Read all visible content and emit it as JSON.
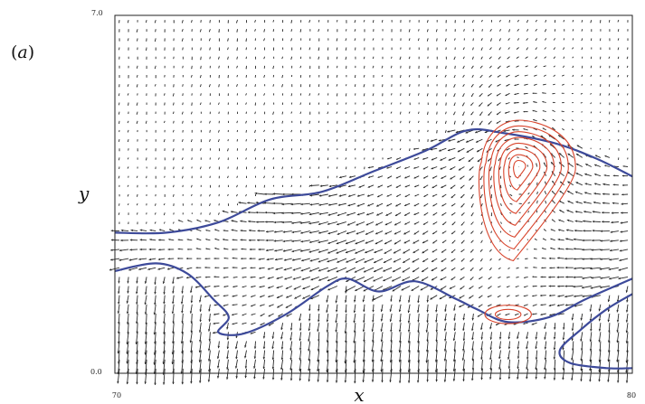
{
  "chart_data": {
    "type": "vector-field",
    "panel_label": "(a)",
    "panel_letter": "a",
    "xlabel": "x",
    "ylabel": "y",
    "xlim": [
      70,
      80
    ],
    "ylim": [
      0.0,
      7.0
    ],
    "x_ticks": [
      "70",
      "80"
    ],
    "y_ticks": [
      "0.0",
      "7.0"
    ],
    "grid": false,
    "colors": {
      "arrows": "#2a2a2a",
      "boundary": "#3d4a9a",
      "contours": "#d8442c",
      "frame": "#222222"
    },
    "boundary_curves": [
      {
        "name": "upper",
        "points": [
          [
            70,
            2.75
          ],
          [
            71,
            2.75
          ],
          [
            72,
            2.95
          ],
          [
            73,
            3.4
          ],
          [
            74,
            3.55
          ],
          [
            75,
            3.95
          ],
          [
            76,
            4.35
          ],
          [
            76.8,
            4.75
          ],
          [
            77.5,
            4.7
          ],
          [
            78.5,
            4.5
          ],
          [
            79.3,
            4.2
          ],
          [
            80,
            3.85
          ]
        ]
      },
      {
        "name": "lower",
        "points": [
          [
            70,
            2.0
          ],
          [
            70.8,
            2.15
          ],
          [
            71.4,
            1.95
          ],
          [
            71.9,
            1.45
          ],
          [
            72.2,
            1.1
          ],
          [
            72.0,
            0.8
          ],
          [
            72.5,
            0.78
          ],
          [
            73.3,
            1.15
          ],
          [
            74.1,
            1.7
          ],
          [
            74.5,
            1.85
          ],
          [
            75.1,
            1.6
          ],
          [
            75.8,
            1.8
          ],
          [
            76.6,
            1.45
          ],
          [
            77.0,
            1.25
          ],
          [
            77.6,
            1.0
          ],
          [
            78.4,
            1.1
          ],
          [
            79.1,
            1.45
          ],
          [
            80,
            1.85
          ]
        ]
      },
      {
        "name": "corner",
        "points": [
          [
            80,
            1.55
          ],
          [
            79.5,
            1.25
          ],
          [
            79.0,
            0.85
          ],
          [
            78.6,
            0.45
          ],
          [
            78.8,
            0.2
          ],
          [
            79.5,
            0.1
          ],
          [
            80,
            0.1
          ]
        ]
      }
    ],
    "contours": {
      "center": [
        77.8,
        4.05
      ],
      "levels": 8,
      "outer": {
        "x_min": 77.08,
        "x_max": 78.9,
        "y_min": 2.2,
        "y_max": 4.95,
        "tail_x": 77.7
      },
      "small_cell": {
        "center": [
          77.6,
          1.15
        ],
        "rx": 0.45,
        "ry": 0.18
      }
    },
    "vector_field": {
      "columns": 57,
      "rows": 39,
      "regions": [
        {
          "name": "upper",
          "description": "weak downward vectors above the upper boundary"
        },
        {
          "name": "middle",
          "description": "leftward shear flow between boundaries"
        },
        {
          "name": "vortex",
          "description": "circulation around the contour centre"
        },
        {
          "name": "lower",
          "description": "strong downward vectors below the lower boundary"
        }
      ]
    }
  }
}
